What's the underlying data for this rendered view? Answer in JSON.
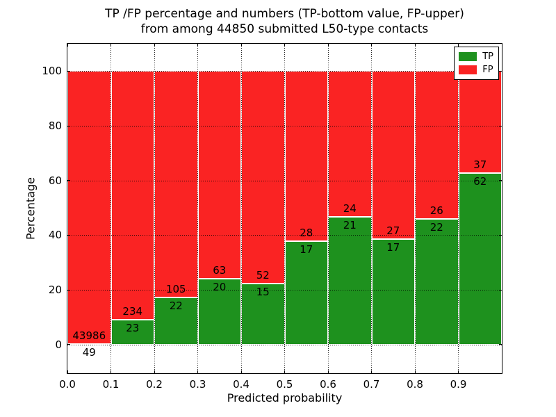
{
  "figure": {
    "title_line1": "TP /FP percentage and numbers (TP-bottom value, FP-upper)",
    "title_line2": "from among 44850 submitted L50-type contacts",
    "background": "#ffffff"
  },
  "chart_data": {
    "type": "bar",
    "stacked": true,
    "title": "TP /FP percentage and numbers (TP-bottom value, FP-upper) from among 44850 submitted L50-type contacts",
    "total_submitted": 44850,
    "xlabel": "Predicted probability",
    "ylabel": "Percentage",
    "xlim": [
      0.0,
      1.0
    ],
    "ylim": [
      -10.5,
      110
    ],
    "xtick_labels": [
      "0.0",
      "0.1",
      "0.2",
      "0.3",
      "0.4",
      "0.5",
      "0.6",
      "0.7",
      "0.8",
      "0.9"
    ],
    "yticks": [
      0,
      20,
      40,
      60,
      80,
      100
    ],
    "bin_width": 0.1,
    "bin_starts": [
      0.0,
      0.1,
      0.2,
      0.3,
      0.4,
      0.5,
      0.6,
      0.7,
      0.8,
      0.9
    ],
    "grid": "dotted black, drawn over bars",
    "legend_position": "upper right",
    "series": [
      {
        "name": "TP",
        "color": "#1e911e",
        "counts": [
          49,
          23,
          22,
          20,
          15,
          17,
          21,
          17,
          22,
          62
        ],
        "percent": [
          0.11,
          8.95,
          17.32,
          24.1,
          22.39,
          37.78,
          46.67,
          38.64,
          45.83,
          62.63
        ]
      },
      {
        "name": "FP",
        "color": "#fa2323",
        "counts": [
          43986,
          234,
          105,
          63,
          52,
          28,
          24,
          27,
          26,
          37
        ],
        "percent": [
          99.89,
          91.05,
          82.68,
          75.9,
          77.61,
          62.22,
          53.33,
          61.36,
          54.17,
          37.37
        ]
      }
    ],
    "annotation_note": "each bar is annotated with raw counts: TP count just below the TP/FP boundary, FP count just above it"
  }
}
